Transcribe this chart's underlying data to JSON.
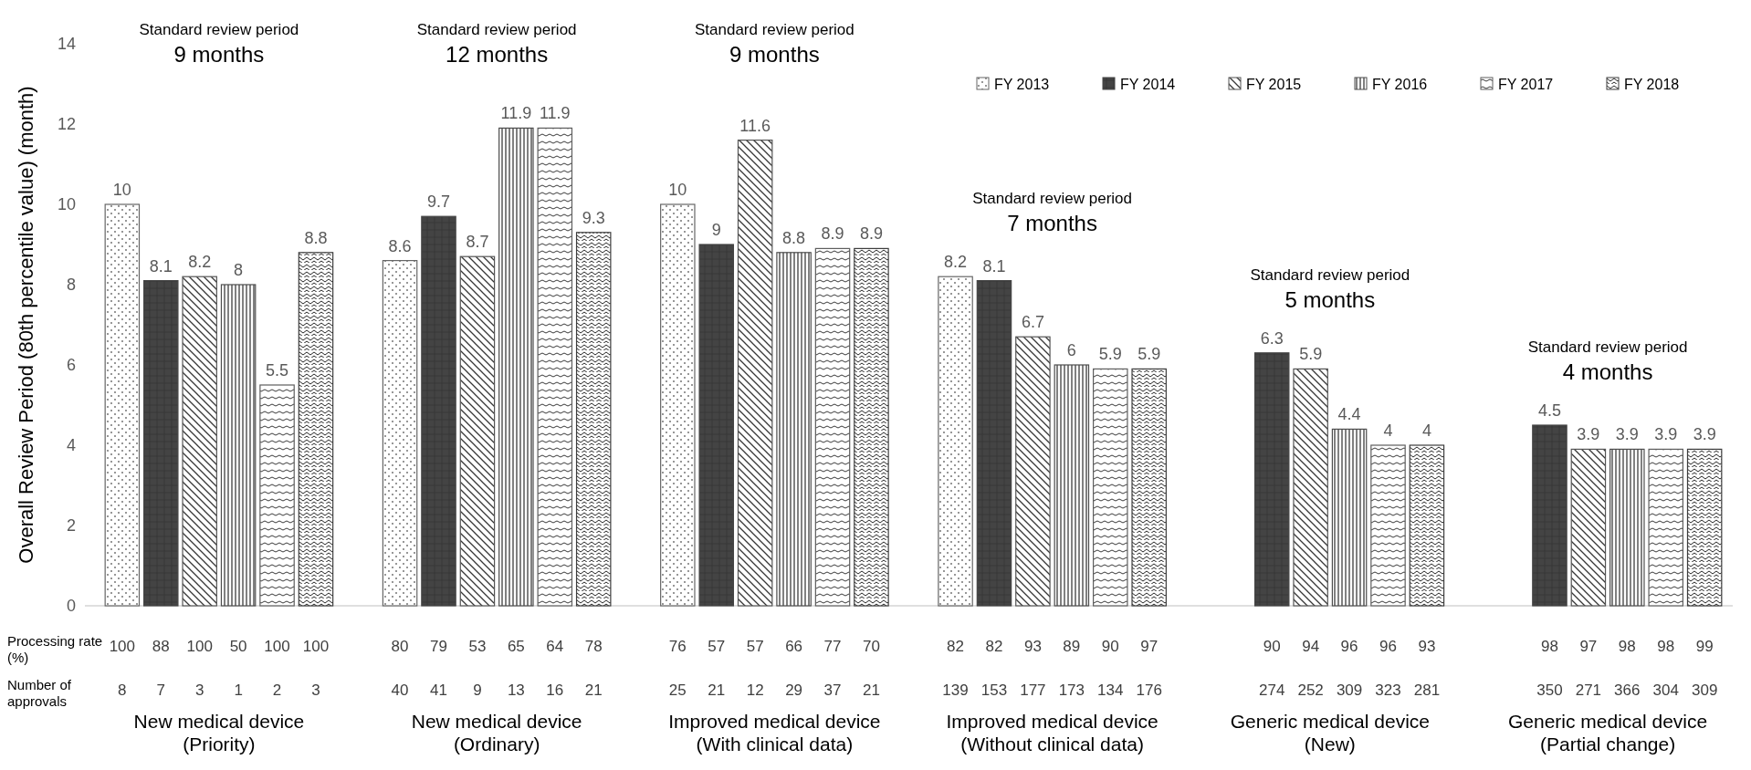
{
  "chart_data": {
    "type": "bar",
    "ylabel": "Overall Review Period (80th percentile value) (month)",
    "categories": [
      "New medical device\n(Priority)",
      "New medical device\n(Ordinary)",
      "Improved medical device\n(With clinical data)",
      "Improved medical device\n(Without clinical data)",
      "Generic medical device\n(New)",
      "Generic medical device\n(Partial change)"
    ],
    "series": [
      {
        "name": "FY 2013",
        "color": "#666666",
        "values": [
          10,
          8.6,
          10,
          8.2,
          null,
          null
        ]
      },
      {
        "name": "FY 2014",
        "color": "#444444",
        "values": [
          8.1,
          9.7,
          9,
          8.1,
          6.3,
          4.5
        ]
      },
      {
        "name": "FY 2015",
        "color": "#555555",
        "values": [
          8.2,
          8.7,
          11.6,
          6.7,
          5.9,
          3.9
        ]
      },
      {
        "name": "FY 2016",
        "color": "#4d4d4d",
        "values": [
          8,
          11.9,
          8.8,
          6,
          4.4,
          3.9
        ]
      },
      {
        "name": "FY 2017",
        "color": "#5e5e5e",
        "values": [
          5.5,
          11.9,
          8.9,
          5.9,
          4,
          3.9
        ]
      },
      {
        "name": "FY 2018",
        "color": "#3d3d3d",
        "values": [
          8.8,
          9.3,
          8.9,
          5.9,
          4,
          3.9
        ]
      }
    ],
    "ylim": [
      0,
      14
    ],
    "yticks": [
      0,
      2,
      4,
      6,
      8,
      10,
      12,
      14
    ],
    "grid": false,
    "legend": "top right",
    "data_labels": true,
    "annotations": [
      "Standard review period\n9 months",
      "Standard review period\n12 months",
      "Standard review period\n9 months",
      "Standard review period\n7 months",
      "Standard review period\n5 months",
      "Standard review period\n4 months",
      "Processing rate\n(%)",
      "100 88 100 50 100 100",
      "80 79 53 65 64 78",
      "76 57 57 66 77 70",
      "82 82 93 89 90 97",
      "90 94 96 96 93",
      "98 97 98 98 99",
      "Number of\napprovals",
      "8 7 3 1 2 3",
      "40 41 9 13 16 21",
      "25 21 12 29 37 21",
      "139 153 177 173 134 176",
      "274 252 309 323 281",
      "350 271 366 304 309"
    ]
  }
}
